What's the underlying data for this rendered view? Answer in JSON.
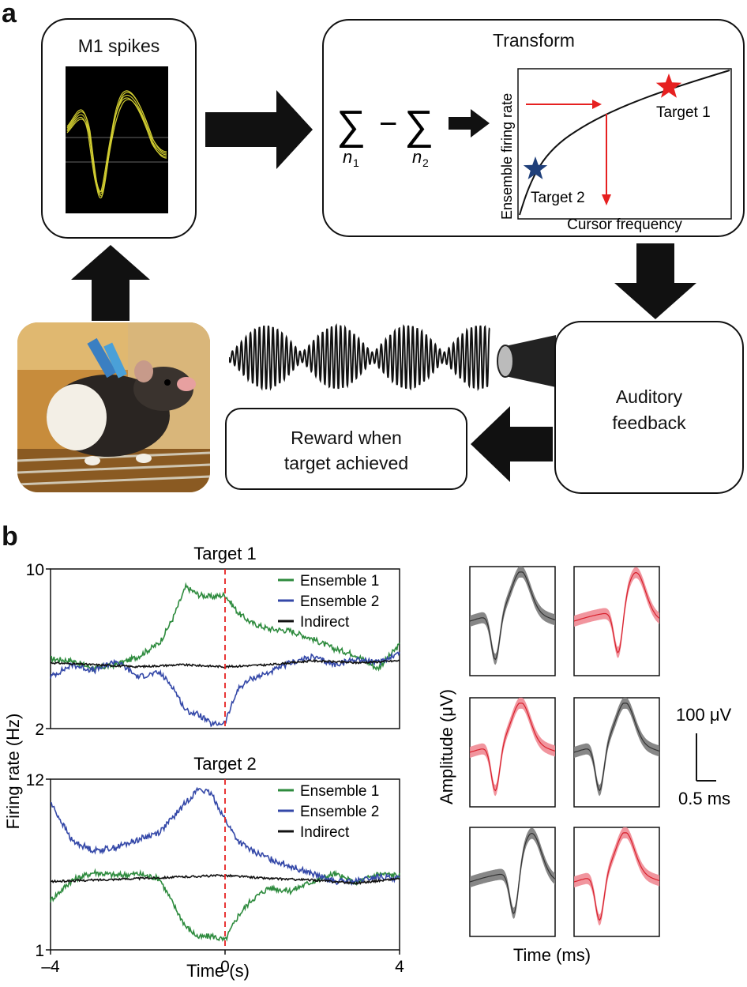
{
  "panels": {
    "a": "a",
    "b": "b"
  },
  "diagram": {
    "m1_spikes_title": "M1 spikes",
    "transform_title": "Transform",
    "transform_graph": {
      "ylabel": "Ensemble firing rate",
      "xlabel": "Cursor frequency",
      "target1": "Target 1",
      "target2": "Target 2",
      "target1_color": "#e62020",
      "target2_color": "#1f3f7a"
    },
    "equation": {
      "sum": "∑",
      "minus": "−",
      "n1": "n",
      "n1_sub": "1",
      "n2": "n",
      "n2_sub": "2"
    },
    "auditory_feedback": [
      "Auditory",
      "feedback"
    ],
    "reward": [
      "Reward when",
      "target achieved"
    ]
  },
  "chart_data": [
    {
      "type": "line",
      "title": "Target 1",
      "xlabel": "Time (s)",
      "ylabel": "Firing rate (Hz)",
      "xlim": [
        -4,
        4
      ],
      "ylim": [
        2,
        10
      ],
      "yticks": [
        "10",
        "2"
      ],
      "vline_x": 0,
      "legend_position": "top-right",
      "series": [
        {
          "name": "Ensemble 1",
          "color": "#2e8b3e",
          "x": [
            -4,
            -3.5,
            -3,
            -2.5,
            -2,
            -1.5,
            -1.2,
            -0.9,
            -0.6,
            -0.3,
            0,
            0.3,
            0.6,
            1,
            1.5,
            2,
            2.5,
            3,
            3.5,
            4
          ],
          "values": [
            5.5,
            5.4,
            5.0,
            5.2,
            5.6,
            6.3,
            7.5,
            9.1,
            8.7,
            8.6,
            8.7,
            7.8,
            7.3,
            7.0,
            6.9,
            6.5,
            6.0,
            5.7,
            5.0,
            6.2
          ]
        },
        {
          "name": "Ensemble 2",
          "color": "#3448a8",
          "x": [
            -4,
            -3.5,
            -3,
            -2.5,
            -2,
            -1.5,
            -1.2,
            -0.9,
            -0.6,
            -0.3,
            0,
            0.3,
            0.6,
            1,
            1.5,
            2,
            2.5,
            3,
            3.5,
            4
          ],
          "values": [
            4.6,
            5.2,
            4.9,
            5.4,
            4.6,
            4.8,
            4.1,
            2.9,
            2.7,
            2.2,
            2.3,
            4.0,
            4.5,
            4.8,
            5.3,
            5.6,
            5.2,
            5.5,
            5.3,
            5.8
          ]
        },
        {
          "name": "Indirect",
          "color": "#111111",
          "x": [
            -4,
            -3,
            -2,
            -1,
            0,
            1,
            2,
            3,
            4
          ],
          "values": [
            5.3,
            5.2,
            5.1,
            5.2,
            5.1,
            5.2,
            5.4,
            5.3,
            5.4
          ]
        }
      ]
    },
    {
      "type": "line",
      "title": "Target 2",
      "xlabel": "Time (s)",
      "ylabel": "Firing rate (Hz)",
      "xlim": [
        -4,
        4
      ],
      "ylim": [
        1,
        12
      ],
      "yticks": [
        "12",
        "1"
      ],
      "xticks": [
        "–4",
        "0",
        "4"
      ],
      "vline_x": 0,
      "legend_position": "top-right",
      "series": [
        {
          "name": "Ensemble 1",
          "color": "#2e8b3e",
          "x": [
            -4,
            -3.5,
            -3,
            -2.5,
            -2,
            -1.5,
            -1.2,
            -0.9,
            -0.6,
            -0.3,
            0,
            0.3,
            0.6,
            1,
            1.5,
            2,
            2.5,
            3,
            3.5,
            4
          ],
          "values": [
            4.2,
            5.5,
            6.0,
            5.8,
            5.9,
            5.6,
            4.0,
            2.5,
            1.8,
            1.9,
            1.6,
            3.2,
            4.2,
            5.0,
            4.8,
            5.4,
            5.9,
            5.3,
            5.9,
            5.8
          ]
        },
        {
          "name": "Ensemble 2",
          "color": "#3448a8",
          "x": [
            -4,
            -3.5,
            -3,
            -2.5,
            -2,
            -1.5,
            -1.2,
            -0.9,
            -0.6,
            -0.3,
            0,
            0.3,
            0.6,
            1,
            1.5,
            2,
            2.5,
            3,
            3.5,
            4
          ],
          "values": [
            10.5,
            8.0,
            7.4,
            7.6,
            8.1,
            8.6,
            9.5,
            10.5,
            11.4,
            11.0,
            9.4,
            8.0,
            7.4,
            6.9,
            6.4,
            5.9,
            5.4,
            5.4,
            5.7,
            5.6
          ]
        },
        {
          "name": "Indirect",
          "color": "#111111",
          "x": [
            -4,
            -3,
            -2,
            -1,
            0,
            1,
            2,
            3,
            4
          ],
          "values": [
            5.4,
            5.5,
            5.6,
            5.7,
            5.8,
            5.6,
            5.5,
            5.3,
            5.6
          ]
        }
      ]
    }
  ],
  "waveforms": {
    "ylabel": "Amplitude (μV)",
    "xlabel": "Time (ms)",
    "scalebar_y": "100 μV",
    "scalebar_x": "0.5 ms",
    "colors": [
      "gray",
      "red",
      "red",
      "gray",
      "gray",
      "red"
    ]
  }
}
